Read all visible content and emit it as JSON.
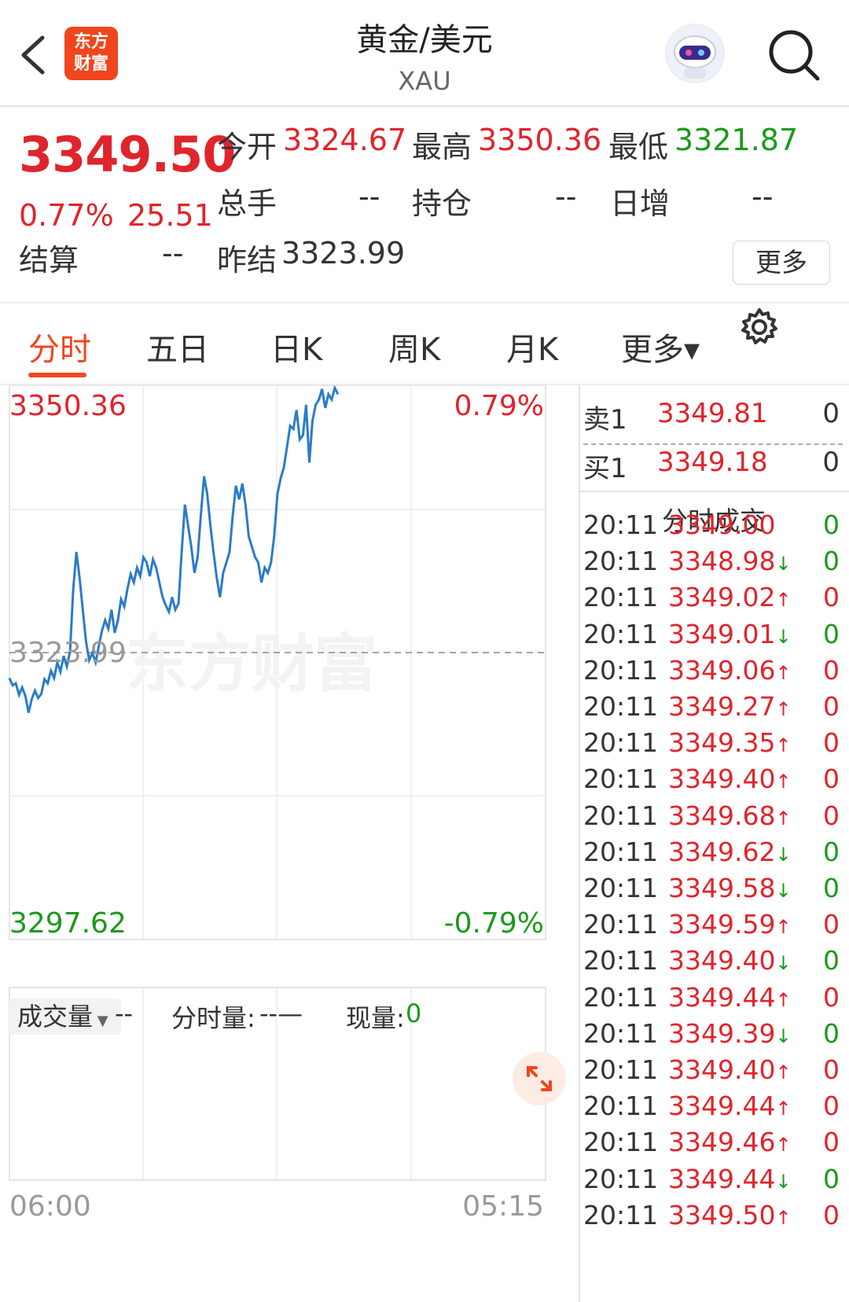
{
  "header": {
    "title": "黄金/美元",
    "subtitle": "XAU",
    "logo_text_line1": "东方",
    "logo_text_line2": "财富"
  },
  "quote": {
    "price": "3349.50",
    "change_pct": "0.77%",
    "change": "25.51",
    "open_label": "今开",
    "open": "3324.67",
    "high_label": "最高",
    "high": "3350.36",
    "low_label": "最低",
    "low": "3321.87",
    "volume_label": "总手",
    "volume": "--",
    "position_label": "持仓",
    "position": "--",
    "daily_inc_label": "日增",
    "daily_inc": "--",
    "settle_label": "结算",
    "settle": "--",
    "prev_settle_label": "昨结",
    "prev_settle": "3323.99",
    "more_button": "更多"
  },
  "tabs": [
    {
      "label": "分时",
      "active": true
    },
    {
      "label": "五日"
    },
    {
      "label": "日K"
    },
    {
      "label": "周K"
    },
    {
      "label": "月K"
    },
    {
      "label": "更多▾"
    }
  ],
  "chart": {
    "top_price": "3350.36",
    "top_pct": "0.79%",
    "mid_price": "3323.99",
    "bottom_price": "3297.62",
    "bottom_pct": "-0.79%",
    "time_start": "06:00",
    "time_end": "05:15",
    "watermark": "东方财富"
  },
  "volume_panel": {
    "selector": "成交量",
    "selector_value": "--",
    "minute_vol_label": "分时量:",
    "minute_vol_value": "--—",
    "current_vol_label": "现量:",
    "current_vol_value": "0"
  },
  "order_book": {
    "ask_label": "卖1",
    "ask_price": "3349.81",
    "ask_vol": "0",
    "bid_label": "买1",
    "bid_price": "3349.18",
    "bid_vol": "0",
    "trades_title": "分时成交"
  },
  "trades": [
    {
      "time": "20:11",
      "price": "3349.00",
      "arrow": "",
      "vol": "0",
      "vol_color": "green"
    },
    {
      "time": "20:11",
      "price": "3348.98",
      "arrow": "↓",
      "vol": "0",
      "vol_color": "green"
    },
    {
      "time": "20:11",
      "price": "3349.02",
      "arrow": "↑",
      "vol": "0",
      "vol_color": "red"
    },
    {
      "time": "20:11",
      "price": "3349.01",
      "arrow": "↓",
      "vol": "0",
      "vol_color": "green"
    },
    {
      "time": "20:11",
      "price": "3349.06",
      "arrow": "↑",
      "vol": "0",
      "vol_color": "red"
    },
    {
      "time": "20:11",
      "price": "3349.27",
      "arrow": "↑",
      "vol": "0",
      "vol_color": "red"
    },
    {
      "time": "20:11",
      "price": "3349.35",
      "arrow": "↑",
      "vol": "0",
      "vol_color": "red"
    },
    {
      "time": "20:11",
      "price": "3349.40",
      "arrow": "↑",
      "vol": "0",
      "vol_color": "red"
    },
    {
      "time": "20:11",
      "price": "3349.68",
      "arrow": "↑",
      "vol": "0",
      "vol_color": "red"
    },
    {
      "time": "20:11",
      "price": "3349.62",
      "arrow": "↓",
      "vol": "0",
      "vol_color": "green"
    },
    {
      "time": "20:11",
      "price": "3349.58",
      "arrow": "↓",
      "vol": "0",
      "vol_color": "green"
    },
    {
      "time": "20:11",
      "price": "3349.59",
      "arrow": "↑",
      "vol": "0",
      "vol_color": "red"
    },
    {
      "time": "20:11",
      "price": "3349.40",
      "arrow": "↓",
      "vol": "0",
      "vol_color": "green"
    },
    {
      "time": "20:11",
      "price": "3349.44",
      "arrow": "↑",
      "vol": "0",
      "vol_color": "red"
    },
    {
      "time": "20:11",
      "price": "3349.39",
      "arrow": "↓",
      "vol": "0",
      "vol_color": "green"
    },
    {
      "time": "20:11",
      "price": "3349.40",
      "arrow": "↑",
      "vol": "0",
      "vol_color": "red"
    },
    {
      "time": "20:11",
      "price": "3349.44",
      "arrow": "↑",
      "vol": "0",
      "vol_color": "red"
    },
    {
      "time": "20:11",
      "price": "3349.46",
      "arrow": "↑",
      "vol": "0",
      "vol_color": "red"
    },
    {
      "time": "20:11",
      "price": "3349.44",
      "arrow": "↓",
      "vol": "0",
      "vol_color": "green"
    },
    {
      "time": "20:11",
      "price": "3349.50",
      "arrow": "↑",
      "vol": "0",
      "vol_color": "red"
    }
  ],
  "colors": {
    "up": "#e0242c",
    "down": "#1a9a1a",
    "accent": "#f0461e",
    "line": "#2a7cc7"
  },
  "icons": [
    "back-arrow-icon",
    "search-icon",
    "settings-gear-icon",
    "expand-icon",
    "robot-avatar-icon"
  ],
  "chart_data": {
    "type": "line",
    "x_range": [
      "06:00",
      "05:15"
    ],
    "ylim": [
      3297.62,
      3350.36
    ],
    "reference_line": 3323.99,
    "series": [
      {
        "values": [
          3322.5,
          3321.8,
          3322.0,
          3320.9,
          3321.6,
          3320.8,
          3319.2,
          3320.5,
          3321.3,
          3320.6,
          3321.0,
          3322.4,
          3322.0,
          3323.2,
          3322.5,
          3324.0,
          3323.1,
          3324.6,
          3323.6,
          3325.0,
          3331.0,
          3334.5,
          3332.0,
          3329.0,
          3326.0,
          3324.2,
          3324.9,
          3324.0,
          3325.5,
          3327.0,
          3328.0,
          3327.2,
          3329.0,
          3326.8,
          3328.0,
          3330.0,
          3329.3,
          3331.0,
          3332.4,
          3331.6,
          3333.0,
          3332.2,
          3334.0,
          3333.5,
          3332.2,
          3333.8,
          3333.0,
          3331.6,
          3330.2,
          3329.4,
          3328.8,
          3330.2,
          3329.0,
          3329.6,
          3334.5,
          3339.0,
          3337.0,
          3335.0,
          3332.5,
          3334.0,
          3338.0,
          3341.7,
          3340.0,
          3337.0,
          3334.4,
          3332.0,
          3330.2,
          3332.5,
          3333.5,
          3334.5,
          3338.0,
          3340.8,
          3339.5,
          3341.0,
          3339.0,
          3336.0,
          3335.0,
          3334.0,
          3333.5,
          3331.6,
          3333.0,
          3332.5,
          3333.5,
          3336.0,
          3340.0,
          3341.5,
          3342.5,
          3344.5,
          3346.5,
          3346.2,
          3348.0,
          3345.2,
          3345.6,
          3348.5,
          3343.0,
          3347.0,
          3348.5,
          3349.0,
          3350.0,
          3348.2,
          3349.5,
          3349.0,
          3350.1,
          3349.5
        ]
      }
    ]
  }
}
